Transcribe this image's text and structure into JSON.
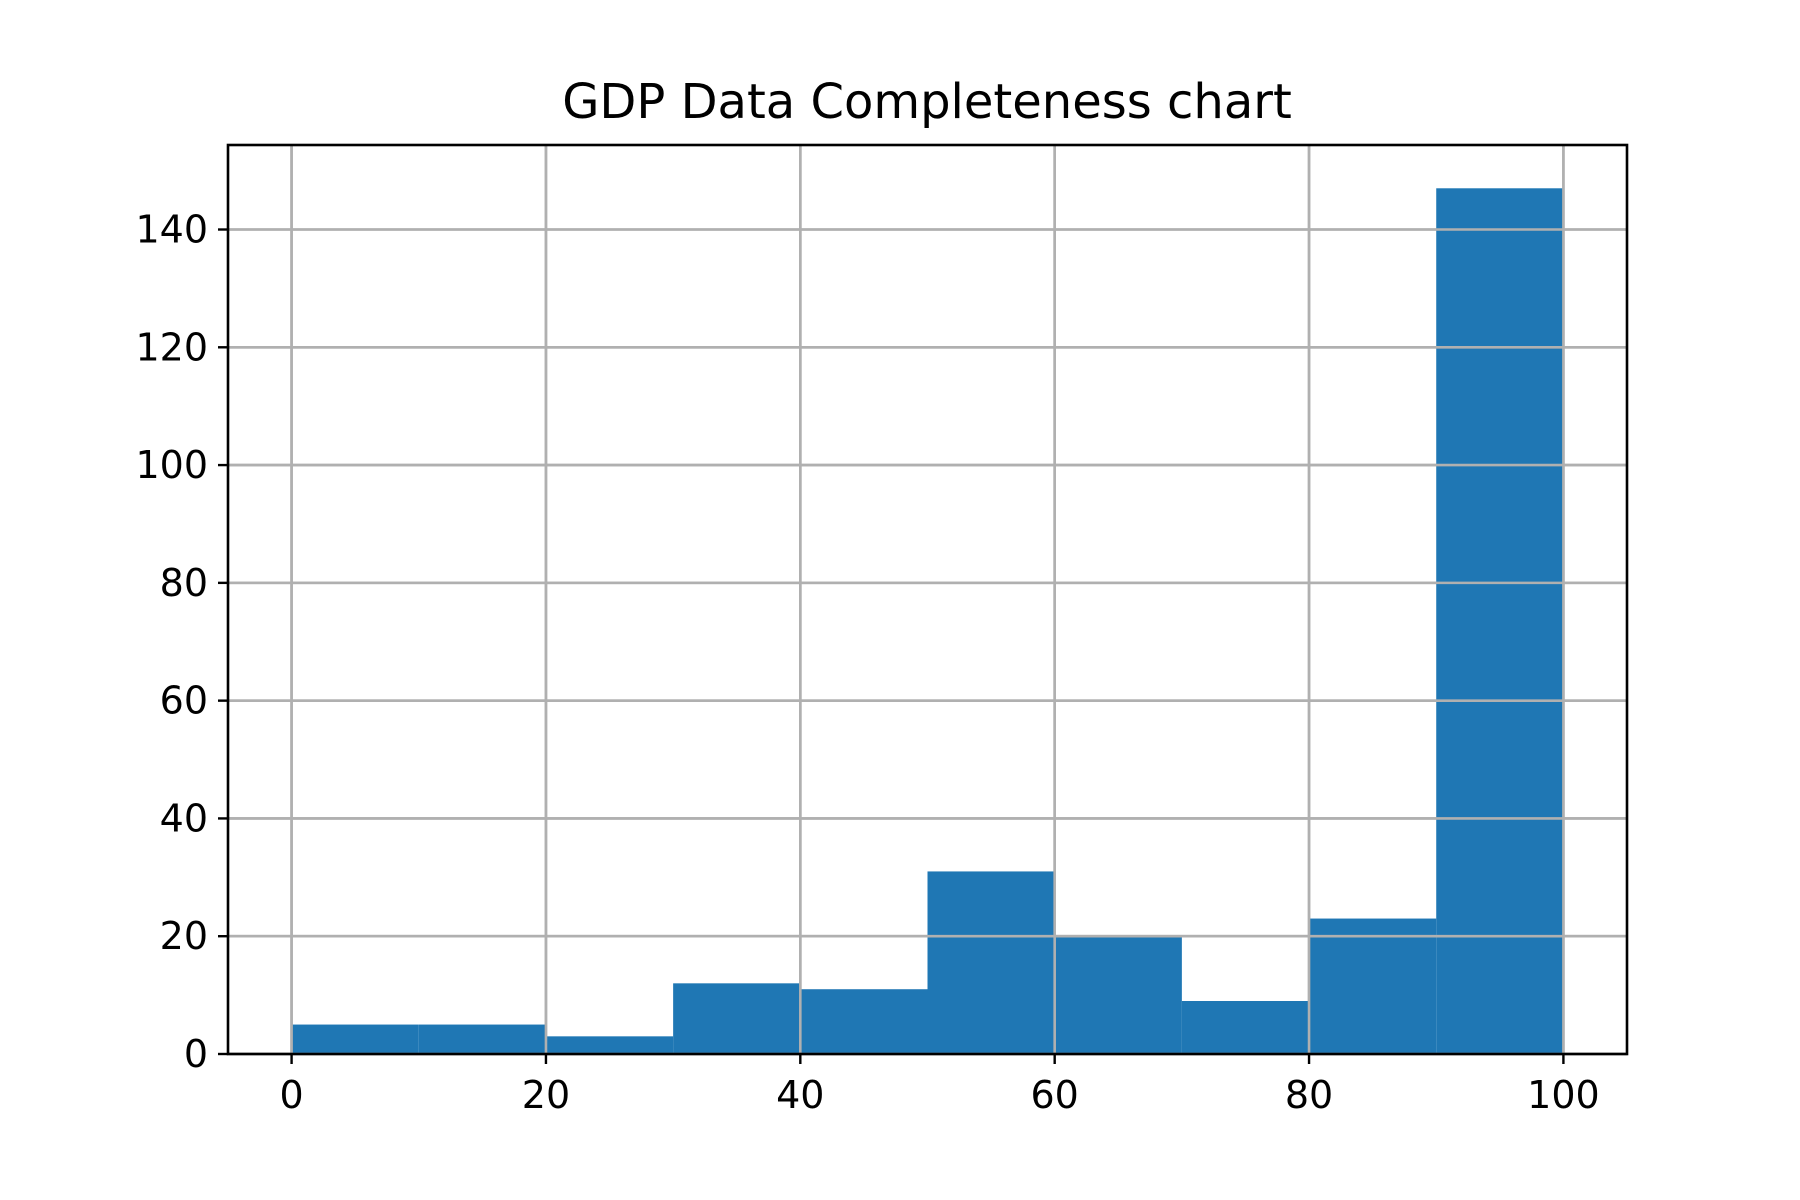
{
  "chart_data": {
    "type": "bar",
    "title": "GDP Data Completeness chart",
    "xlabel": "",
    "ylabel": "",
    "bin_edges": [
      0,
      10,
      20,
      30,
      40,
      50,
      60,
      70,
      80,
      90,
      100
    ],
    "values": [
      5,
      5,
      3,
      12,
      11,
      31,
      20,
      9,
      23,
      147
    ],
    "xlim": [
      -5,
      105
    ],
    "ylim": [
      0,
      154.35
    ],
    "x_ticks": [
      0,
      20,
      40,
      60,
      80,
      100
    ],
    "x_tick_labels": [
      "0",
      "20",
      "40",
      "60",
      "80",
      "100"
    ],
    "y_ticks": [
      0,
      20,
      40,
      60,
      80,
      100,
      120,
      140
    ],
    "y_tick_labels": [
      "0",
      "20",
      "40",
      "60",
      "80",
      "100",
      "120",
      "140"
    ],
    "grid": true,
    "bar_color": "#1f77b4",
    "grid_color": "#b0b0b0"
  }
}
